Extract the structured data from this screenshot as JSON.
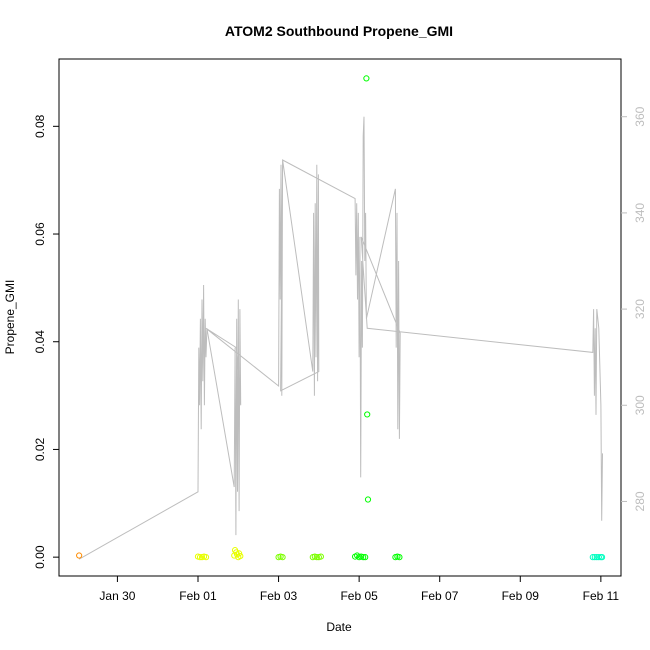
{
  "chart_data": {
    "type": "scatter",
    "title": "ATOM2 Southbound Propene_GMI",
    "xlabel": "Date",
    "ylabel": "Propene_GMI",
    "x_unit": "days",
    "x_ticks": [
      {
        "label": "Jan 30",
        "x": 0
      },
      {
        "label": "Feb 01",
        "x": 2
      },
      {
        "label": "Feb 03",
        "x": 4
      },
      {
        "label": "Feb 05",
        "x": 6
      },
      {
        "label": "Feb 07",
        "x": 8
      },
      {
        "label": "Feb 09",
        "x": 10
      },
      {
        "label": "Feb 11",
        "x": 12
      }
    ],
    "xlim": [
      -1.45,
      12.5
    ],
    "ylim": [
      -0.0035,
      0.0925
    ],
    "y_ticks": [
      0.0,
      0.02,
      0.04,
      0.06,
      0.08
    ],
    "y_tick_labels": [
      "0.00",
      "0.02",
      "0.04",
      "0.06",
      "0.08"
    ],
    "y2lim": [
      264.5,
      372
    ],
    "y2_ticks": [
      280,
      300,
      320,
      340,
      360
    ],
    "grid": false,
    "colors": {
      "secondary_line": "#bdbdbd",
      "points": [
        "#ff8c00",
        "#ffd000",
        "#e8ff00",
        "#7cff00",
        "#00ff00",
        "#00ffc0"
      ]
    },
    "series": [
      {
        "type": "scatter",
        "points": [
          {
            "x": -0.95,
            "y": 0.0003,
            "color": "#ff8c00"
          },
          {
            "x": 2.0,
            "y": 0.0001,
            "color": "#e8ff00"
          },
          {
            "x": 2.05,
            "y": 0.0,
            "color": "#e8ff00"
          },
          {
            "x": 2.1,
            "y": 0.0,
            "color": "#e8ff00"
          },
          {
            "x": 2.15,
            "y": 0.0001,
            "color": "#e8ff00"
          },
          {
            "x": 2.2,
            "y": 0.0,
            "color": "#e8ff00"
          },
          {
            "x": 2.9,
            "y": 0.0003,
            "color": "#e8ff00"
          },
          {
            "x": 2.92,
            "y": 0.0013,
            "color": "#e8ff00"
          },
          {
            "x": 2.95,
            "y": 0.0009,
            "color": "#e8ff00"
          },
          {
            "x": 2.97,
            "y": 0.0005,
            "color": "#e8ff00"
          },
          {
            "x": 3.0,
            "y": 0.0,
            "color": "#e8ff00"
          },
          {
            "x": 3.02,
            "y": 0.0007,
            "color": "#e8ff00"
          },
          {
            "x": 3.05,
            "y": 0.0002,
            "color": "#e8ff00"
          },
          {
            "x": 4.0,
            "y": 0.0,
            "color": "#7cff00"
          },
          {
            "x": 4.05,
            "y": 0.0001,
            "color": "#7cff00"
          },
          {
            "x": 4.1,
            "y": 0.0,
            "color": "#7cff00"
          },
          {
            "x": 4.85,
            "y": 0.0,
            "color": "#7cff00"
          },
          {
            "x": 4.9,
            "y": 0.0001,
            "color": "#7cff00"
          },
          {
            "x": 4.95,
            "y": 0.0,
            "color": "#7cff00"
          },
          {
            "x": 5.0,
            "y": 0.0,
            "color": "#7cff00"
          },
          {
            "x": 5.05,
            "y": 0.0001,
            "color": "#7cff00"
          },
          {
            "x": 5.9,
            "y": 0.0001,
            "color": "#00ff00"
          },
          {
            "x": 5.95,
            "y": 0.0003,
            "color": "#00ff00"
          },
          {
            "x": 6.0,
            "y": 0.0,
            "color": "#00ff00"
          },
          {
            "x": 6.05,
            "y": 0.0001,
            "color": "#00ff00"
          },
          {
            "x": 6.1,
            "y": 0.0,
            "color": "#00ff00"
          },
          {
            "x": 6.15,
            "y": 0.0,
            "color": "#00ff00"
          },
          {
            "x": 6.18,
            "y": 0.0889,
            "color": "#00ff00"
          },
          {
            "x": 6.2,
            "y": 0.0265,
            "color": "#00ff00"
          },
          {
            "x": 6.22,
            "y": 0.0107,
            "color": "#00ff00"
          },
          {
            "x": 6.9,
            "y": 0.0,
            "color": "#00ff00"
          },
          {
            "x": 6.95,
            "y": 0.0001,
            "color": "#00ff00"
          },
          {
            "x": 7.0,
            "y": 0.0,
            "color": "#00ff00"
          },
          {
            "x": 11.8,
            "y": 0.0,
            "color": "#00ffc0"
          },
          {
            "x": 11.85,
            "y": 0.0,
            "color": "#00ffc0"
          },
          {
            "x": 11.9,
            "y": 0.0,
            "color": "#00ffc0"
          },
          {
            "x": 11.95,
            "y": 0.0,
            "color": "#00ffc0"
          },
          {
            "x": 12.0,
            "y": 0.0,
            "color": "#00ffc0"
          },
          {
            "x": 12.03,
            "y": 0.0,
            "color": "#00ffc0"
          }
        ]
      },
      {
        "type": "line",
        "axis": "right",
        "color": "#bdbdbd",
        "points": [
          [
            -0.95,
            268
          ],
          [
            2.0,
            282
          ],
          [
            2.02,
            312
          ],
          [
            2.04,
            300
          ],
          [
            2.06,
            318
          ],
          [
            2.08,
            295
          ],
          [
            2.1,
            322
          ],
          [
            2.12,
            305
          ],
          [
            2.14,
            325
          ],
          [
            2.16,
            300
          ],
          [
            2.18,
            318
          ],
          [
            2.2,
            310
          ],
          [
            2.22,
            316
          ],
          [
            2.9,
            283
          ],
          [
            2.92,
            312
          ],
          [
            2.94,
            273
          ],
          [
            2.96,
            318
          ],
          [
            2.98,
            282
          ],
          [
            3.0,
            322
          ],
          [
            3.02,
            278
          ],
          [
            3.04,
            320
          ],
          [
            3.06,
            300
          ],
          [
            2.95,
            312
          ],
          [
            2.2,
            316
          ],
          [
            4.0,
            304
          ],
          [
            4.02,
            345
          ],
          [
            4.04,
            322
          ],
          [
            4.06,
            350
          ],
          [
            4.08,
            302
          ],
          [
            4.1,
            351
          ],
          [
            4.85,
            307
          ],
          [
            4.87,
            340
          ],
          [
            4.89,
            302
          ],
          [
            4.91,
            342
          ],
          [
            4.93,
            310
          ],
          [
            4.95,
            350
          ],
          [
            4.97,
            305
          ],
          [
            4.99,
            348
          ],
          [
            5.0,
            307
          ],
          [
            4.05,
            303
          ],
          [
            4.1,
            351
          ],
          [
            5.9,
            343
          ],
          [
            5.92,
            327
          ],
          [
            5.94,
            342
          ],
          [
            5.96,
            322
          ],
          [
            5.98,
            340
          ],
          [
            6.0,
            310
          ],
          [
            6.02,
            335
          ],
          [
            6.04,
            285
          ],
          [
            6.06,
            330
          ],
          [
            6.08,
            312
          ],
          [
            6.1,
            356
          ],
          [
            6.12,
            360
          ],
          [
            6.14,
            330
          ],
          [
            6.16,
            340
          ],
          [
            6.18,
            318
          ],
          [
            6.9,
            345
          ],
          [
            6.92,
            312
          ],
          [
            6.94,
            340
          ],
          [
            6.96,
            295
          ],
          [
            6.98,
            330
          ],
          [
            7.0,
            293
          ],
          [
            7.02,
            315
          ],
          [
            6.05,
            335
          ],
          [
            6.2,
            316
          ],
          [
            11.8,
            311
          ],
          [
            11.82,
            320
          ],
          [
            11.84,
            302
          ],
          [
            11.86,
            316
          ],
          [
            11.88,
            298
          ],
          [
            11.9,
            320
          ],
          [
            11.95,
            316
          ],
          [
            12.0,
            300
          ],
          [
            12.02,
            276
          ],
          [
            12.04,
            290
          ]
        ]
      }
    ]
  }
}
